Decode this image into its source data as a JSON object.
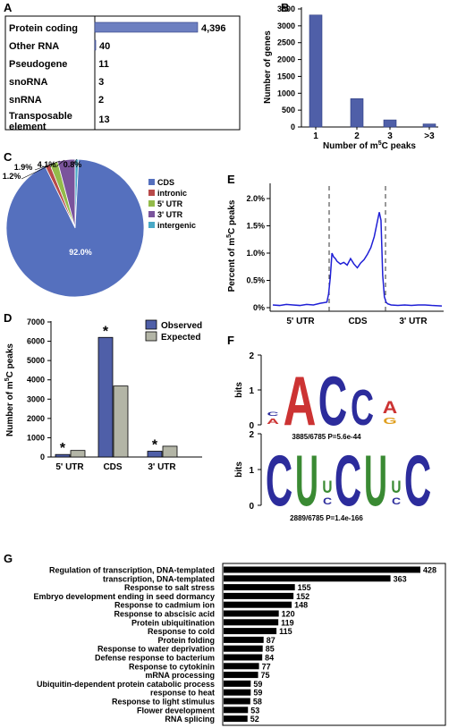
{
  "panel_labels": {
    "a": "A",
    "b": "B",
    "c": "C",
    "d": "D",
    "e": "E",
    "f": "F",
    "g": "G"
  },
  "chart_data": [
    {
      "id": "A",
      "type": "bar",
      "orientation": "horizontal",
      "categories": [
        "Protein coding",
        "Other RNA",
        "Pseudogene",
        "snoRNA",
        "snRNA",
        "Transposable element"
      ],
      "values": [
        4396,
        40,
        11,
        3,
        2,
        13
      ],
      "value_labels": [
        "4,396",
        "40",
        "11",
        "3",
        "2",
        "13"
      ],
      "colors": {
        "bar": "#6d7fc0"
      }
    },
    {
      "id": "B",
      "type": "bar",
      "categories": [
        "1",
        "2",
        "3",
        ">3"
      ],
      "values": [
        3320,
        840,
        210,
        90
      ],
      "ylabel": "Number of genes",
      "xlabel_pre": "Number of m",
      "xlabel_sup": "5",
      "xlabel_post": "C peaks",
      "ylim": [
        0,
        3500
      ],
      "yticks": [
        "0",
        "500",
        "1000",
        "1500",
        "2000",
        "2500",
        "3000",
        "3500"
      ],
      "colors": {
        "bar": "#4f5fa8"
      }
    },
    {
      "id": "C",
      "type": "pie",
      "slices": [
        {
          "name": "CDS",
          "value": 92.0,
          "label": "92.0%",
          "color": "#5570be"
        },
        {
          "name": "intronic",
          "value": 1.2,
          "label": "1.2%",
          "color": "#b84a4a"
        },
        {
          "name": "5' UTR",
          "value": 1.9,
          "label": "1.9%",
          "color": "#93bb4a"
        },
        {
          "name": "3' UTR",
          "value": 4.1,
          "label": "4.1%",
          "color": "#7a549c"
        },
        {
          "name": "intergenic",
          "value": 0.8,
          "label": "0.8%",
          "color": "#49a9c6"
        }
      ]
    },
    {
      "id": "D",
      "type": "bar",
      "categories": [
        "5' UTR",
        "CDS",
        "3' UTR"
      ],
      "series": [
        {
          "name": "Observed",
          "values": [
            130,
            6200,
            300
          ],
          "color": "#4f5fa8"
        },
        {
          "name": "Expected",
          "values": [
            340,
            3680,
            560
          ],
          "color": "#b3b5a6"
        }
      ],
      "significance": [
        "*",
        "*",
        "*"
      ],
      "ylabel_pre": "Number of m",
      "ylabel_sup": "5",
      "ylabel_post": "C peaks",
      "ylim": [
        0,
        7000
      ],
      "yticks": [
        "0",
        "1000",
        "2000",
        "3000",
        "4000",
        "5000",
        "6000",
        "7000"
      ],
      "legend": "top-right"
    },
    {
      "id": "E",
      "type": "line",
      "ylabel_pre": "Percent of m",
      "ylabel_sup": "5",
      "ylabel_post": "C peaks",
      "ylim": [
        0,
        2.0
      ],
      "yticks": [
        "0%",
        "0.5%",
        "1.0%",
        "1.5%",
        "2.0%"
      ],
      "region_labels": [
        "5' UTR",
        "CDS",
        "3' UTR"
      ],
      "x": [
        0,
        4,
        8,
        12,
        16,
        20,
        24,
        28,
        32,
        33,
        34,
        35,
        36,
        37,
        38,
        40,
        42,
        44,
        46,
        48,
        50,
        52,
        54,
        56,
        58,
        60,
        62,
        63,
        64,
        65,
        66,
        67,
        68,
        70,
        74,
        78,
        82,
        86,
        90,
        94,
        100
      ],
      "y": [
        0.05,
        0.04,
        0.06,
        0.05,
        0.04,
        0.06,
        0.05,
        0.08,
        0.1,
        0.25,
        0.55,
        1.0,
        0.93,
        0.9,
        0.85,
        0.8,
        0.83,
        0.78,
        0.9,
        0.8,
        0.73,
        0.82,
        0.88,
        0.98,
        1.1,
        1.3,
        1.6,
        1.75,
        1.6,
        0.6,
        0.2,
        0.1,
        0.07,
        0.05,
        0.04,
        0.05,
        0.04,
        0.05,
        0.05,
        0.04,
        0.03
      ],
      "colors": {
        "line": "#1f1fd6"
      }
    },
    {
      "id": "F",
      "type": "sequence_logo",
      "ylabel": "bits",
      "yticks": [
        "0",
        "1",
        "2"
      ],
      "motifs": [
        {
          "caption": "3885/6785  P=5.6e-44",
          "positions": [
            {
              "letter": "A",
              "color": "#c33"
            },
            {
              "letter": "A",
              "color": "#c33"
            },
            {
              "letter": "C",
              "color": "#2c2c9c"
            },
            {
              "letter": "C",
              "color": "#2c2c9c"
            },
            {
              "letter": "A",
              "color": "#c33"
            }
          ]
        },
        {
          "caption": "2889/6785  P=1.4e-166",
          "positions": [
            {
              "letter": "C",
              "color": "#2c2c9c"
            },
            {
              "letter": "U",
              "color": "#3a8a33"
            },
            {
              "letter": "U",
              "color": "#3a8a33"
            },
            {
              "letter": "C",
              "color": "#2c2c9c"
            },
            {
              "letter": "U",
              "color": "#3a8a33"
            },
            {
              "letter": "U",
              "color": "#3a8a33"
            },
            {
              "letter": "C",
              "color": "#2c2c9c"
            }
          ]
        }
      ]
    },
    {
      "id": "G",
      "type": "bar",
      "orientation": "horizontal",
      "categories": [
        "Regulation of transcription, DNA-templated",
        "transcription, DNA-templated",
        "Response to salt stress",
        "Embryo development ending in seed dormancy",
        "Response to cadmium ion",
        "Response to abscisic acid",
        "Protein ubiquitination",
        "Response to cold",
        "Protein folding",
        "Response to water deprivation",
        "Defense response to bacterium",
        "Response to cytokinin",
        "mRNA processing",
        "Ubiquitin-dependent protein catabolic process",
        "response to heat",
        "Response to light stimulus",
        "Flower development",
        "RNA splicing"
      ],
      "values": [
        428,
        363,
        155,
        152,
        148,
        120,
        119,
        115,
        87,
        85,
        84,
        77,
        75,
        59,
        59,
        58,
        53,
        52
      ],
      "colors": {
        "bar": "#000000"
      }
    }
  ]
}
